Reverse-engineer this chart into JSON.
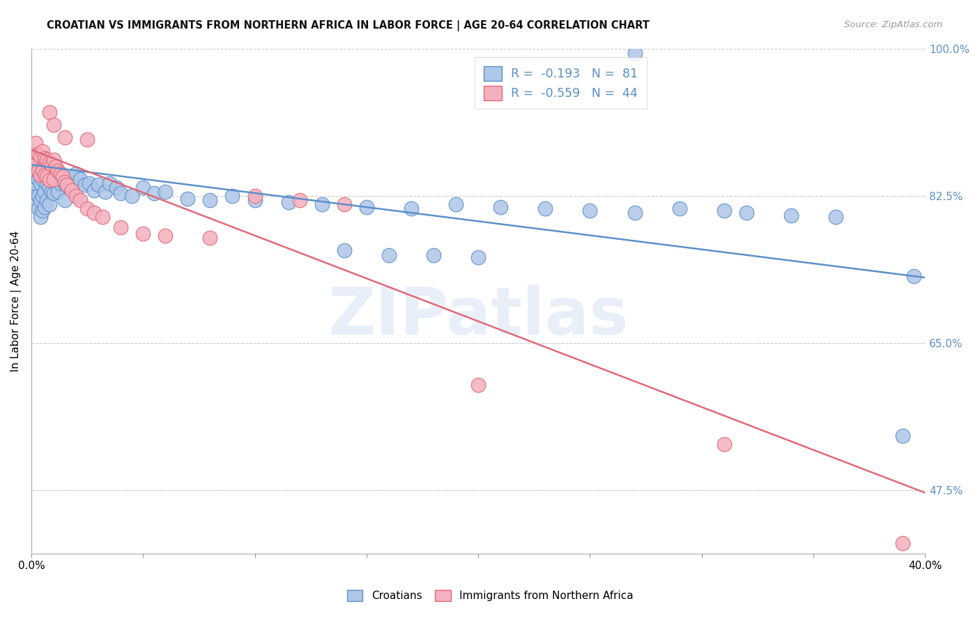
{
  "title": "CROATIAN VS IMMIGRANTS FROM NORTHERN AFRICA IN LABOR FORCE | AGE 20-64 CORRELATION CHART",
  "source": "Source: ZipAtlas.com",
  "ylabel": "In Labor Force | Age 20-64",
  "legend_label1": "Croatians",
  "legend_label2": "Immigrants from Northern Africa",
  "r1": -0.193,
  "n1": 81,
  "r2": -0.559,
  "n2": 44,
  "color1": "#aec6e8",
  "color2": "#f4b0be",
  "line_color1": "#5b8fc9",
  "line_color2": "#e06878",
  "watermark": "ZIPatlas",
  "xmin": 0.0,
  "xmax": 0.4,
  "ymin": 0.4,
  "ymax": 1.0,
  "blue_line_x": [
    0.0,
    0.4
  ],
  "blue_line_y": [
    0.862,
    0.728
  ],
  "pink_line_x": [
    0.0,
    0.4
  ],
  "pink_line_y": [
    0.88,
    0.472
  ],
  "right_yticks": [
    0.475,
    0.65,
    0.825,
    1.0
  ],
  "right_ytick_labels": [
    "47.5%",
    "65.0%",
    "82.5%",
    "100.0%"
  ],
  "xtick_positions": [
    0.0,
    0.05,
    0.1,
    0.15,
    0.2,
    0.25,
    0.3,
    0.35,
    0.4
  ],
  "xtick_labels": [
    "0.0%",
    "",
    "",
    "",
    "",
    "",
    "",
    "",
    "40.0%"
  ],
  "blue_x": [
    0.001,
    0.001,
    0.002,
    0.002,
    0.002,
    0.003,
    0.003,
    0.003,
    0.003,
    0.004,
    0.004,
    0.004,
    0.004,
    0.005,
    0.005,
    0.005,
    0.005,
    0.006,
    0.006,
    0.006,
    0.007,
    0.007,
    0.007,
    0.008,
    0.008,
    0.008,
    0.009,
    0.009,
    0.01,
    0.01,
    0.011,
    0.011,
    0.012,
    0.012,
    0.013,
    0.014,
    0.015,
    0.015,
    0.016,
    0.017,
    0.018,
    0.019,
    0.02,
    0.022,
    0.024,
    0.026,
    0.028,
    0.03,
    0.033,
    0.035,
    0.038,
    0.04,
    0.045,
    0.05,
    0.055,
    0.06,
    0.07,
    0.08,
    0.09,
    0.1,
    0.115,
    0.13,
    0.15,
    0.17,
    0.19,
    0.21,
    0.23,
    0.25,
    0.27,
    0.14,
    0.16,
    0.18,
    0.2,
    0.29,
    0.31,
    0.32,
    0.34,
    0.36,
    0.27,
    0.395,
    0.39
  ],
  "blue_y": [
    0.84,
    0.82,
    0.855,
    0.84,
    0.815,
    0.86,
    0.845,
    0.825,
    0.81,
    0.855,
    0.84,
    0.82,
    0.8,
    0.865,
    0.845,
    0.825,
    0.808,
    0.85,
    0.83,
    0.812,
    0.858,
    0.84,
    0.82,
    0.856,
    0.835,
    0.815,
    0.85,
    0.83,
    0.848,
    0.828,
    0.858,
    0.84,
    0.85,
    0.83,
    0.84,
    0.845,
    0.84,
    0.82,
    0.838,
    0.835,
    0.845,
    0.84,
    0.852,
    0.845,
    0.838,
    0.84,
    0.832,
    0.838,
    0.83,
    0.84,
    0.835,
    0.828,
    0.825,
    0.835,
    0.828,
    0.83,
    0.822,
    0.82,
    0.825,
    0.82,
    0.818,
    0.815,
    0.812,
    0.81,
    0.815,
    0.812,
    0.81,
    0.808,
    0.805,
    0.76,
    0.755,
    0.755,
    0.752,
    0.81,
    0.808,
    0.805,
    0.802,
    0.8,
    0.995,
    0.73,
    0.54
  ],
  "pink_x": [
    0.001,
    0.002,
    0.002,
    0.003,
    0.003,
    0.004,
    0.004,
    0.005,
    0.005,
    0.006,
    0.006,
    0.007,
    0.007,
    0.008,
    0.008,
    0.009,
    0.01,
    0.01,
    0.011,
    0.012,
    0.013,
    0.014,
    0.015,
    0.016,
    0.018,
    0.02,
    0.022,
    0.025,
    0.028,
    0.032,
    0.04,
    0.05,
    0.06,
    0.08,
    0.1,
    0.12,
    0.14,
    0.008,
    0.01,
    0.015,
    0.025,
    0.2,
    0.31,
    0.39
  ],
  "pink_y": [
    0.875,
    0.888,
    0.862,
    0.875,
    0.855,
    0.872,
    0.85,
    0.878,
    0.856,
    0.87,
    0.85,
    0.868,
    0.848,
    0.865,
    0.844,
    0.862,
    0.868,
    0.845,
    0.86,
    0.855,
    0.852,
    0.848,
    0.842,
    0.838,
    0.832,
    0.825,
    0.82,
    0.81,
    0.805,
    0.8,
    0.788,
    0.78,
    0.778,
    0.775,
    0.825,
    0.82,
    0.815,
    0.925,
    0.91,
    0.895,
    0.892,
    0.6,
    0.53,
    0.412
  ]
}
